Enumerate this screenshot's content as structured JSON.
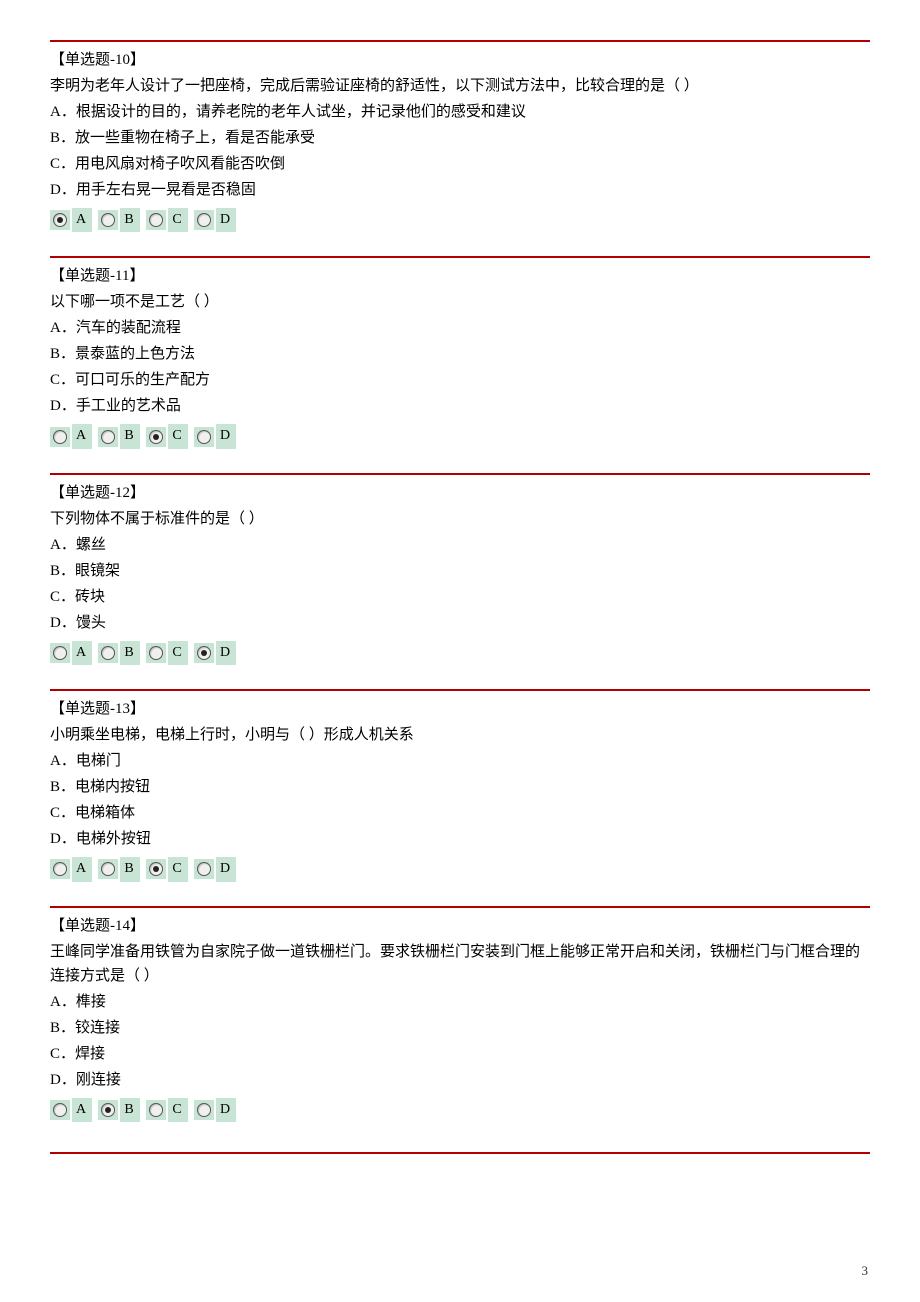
{
  "page_number": "3",
  "colors": {
    "divider": "#b00000",
    "radio_bg": "#c7e4d4",
    "text": "#000000",
    "page_bg": "#ffffff"
  },
  "option_letters": [
    "A",
    "B",
    "C",
    "D"
  ],
  "questions": [
    {
      "header": "【单选题-10】",
      "stem": "李明为老年人设计了一把座椅，完成后需验证座椅的舒适性，以下测试方法中，比较合理的是（ ）",
      "options": [
        "A．根据设计的目的，请养老院的老年人试坐，并记录他们的感受和建议",
        "B．放一些重物在椅子上，看是否能承受",
        "C．用电风扇对椅子吹风看能否吹倒",
        "D．用手左右晃一晃看是否稳固"
      ],
      "selected_index": 0
    },
    {
      "header": "【单选题-11】",
      "stem": "以下哪一项不是工艺（ ）",
      "options": [
        "A．汽车的装配流程",
        "B．景泰蓝的上色方法",
        "C．可口可乐的生产配方",
        "D．手工业的艺术品"
      ],
      "selected_index": 2
    },
    {
      "header": "【单选题-12】",
      "stem": "下列物体不属于标准件的是（ ）",
      "options": [
        "A．螺丝",
        "B．眼镜架",
        "C．砖块",
        "D．馒头"
      ],
      "selected_index": 3
    },
    {
      "header": "【单选题-13】",
      "stem": "小明乘坐电梯，电梯上行时，小明与（ ）形成人机关系",
      "options": [
        "A．电梯门",
        "B．电梯内按钮",
        "C．电梯箱体",
        "D．电梯外按钮"
      ],
      "selected_index": 2
    },
    {
      "header": "【单选题-14】",
      "stem": "王峰同学准备用铁管为自家院子做一道铁栅栏门。要求铁栅栏门安装到门框上能够正常开启和关闭，铁栅栏门与门框合理的连接方式是（ ）",
      "options": [
        "A．榫接",
        "B．铰连接",
        "C．焊接",
        "D．刚连接"
      ],
      "selected_index": 1
    }
  ]
}
